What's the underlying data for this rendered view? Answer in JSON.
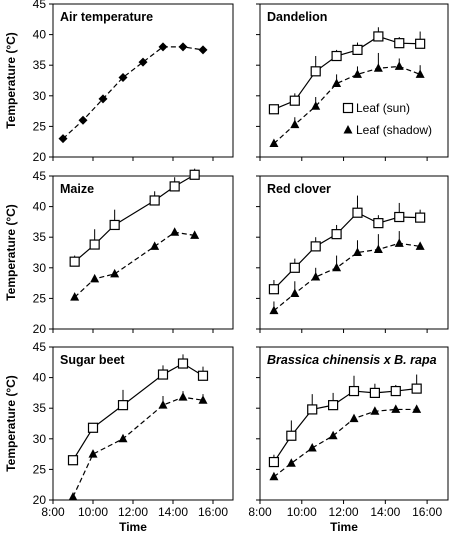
{
  "chart_data": {
    "type": "line",
    "x_tick_labels": [
      "8:00",
      "10:00",
      "12:00",
      "14:00",
      "16:00"
    ],
    "x_range_hours": [
      8,
      17
    ],
    "xlabel": "Time",
    "ylabel": "Temperature (°C)",
    "ylim": [
      20,
      45
    ],
    "y_ticks": [
      20,
      25,
      30,
      35,
      40,
      45
    ],
    "legend": {
      "panel": "Dandelion",
      "entries": [
        {
          "name": "Leaf (sun)",
          "marker": "square",
          "line": "solid"
        },
        {
          "name": "Leaf (shadow)",
          "marker": "triangle",
          "line": "dashed"
        }
      ]
    },
    "panels": [
      {
        "title": "Air temperature",
        "italic": false,
        "series": [
          {
            "marker": "diamond",
            "line": "dashed",
            "points": [
              {
                "time": "8:30",
                "value": 23.0
              },
              {
                "time": "9:30",
                "value": 26.0
              },
              {
                "time": "10:30",
                "value": 29.5
              },
              {
                "time": "11:30",
                "value": 33.0
              },
              {
                "time": "12:30",
                "value": 35.5
              },
              {
                "time": "13:30",
                "value": 38.0
              },
              {
                "time": "14:30",
                "value": 38.0
              },
              {
                "time": "15:30",
                "value": 37.5
              }
            ]
          }
        ]
      },
      {
        "title": "Dandelion",
        "italic": false,
        "series": [
          {
            "name": "Leaf (sun)",
            "marker": "square",
            "line": "solid",
            "points": [
              {
                "time": "8:40",
                "value": 27.8,
                "err": 0
              },
              {
                "time": "9:40",
                "value": 29.2,
                "err": 1.2
              },
              {
                "time": "10:40",
                "value": 34.0,
                "err": 2.5
              },
              {
                "time": "11:40",
                "value": 36.5,
                "err": 1.0
              },
              {
                "time": "12:40",
                "value": 37.5,
                "err": 1.2
              },
              {
                "time": "13:40",
                "value": 39.7,
                "err": 1.5
              },
              {
                "time": "14:40",
                "value": 38.6,
                "err": 1.0
              },
              {
                "time": "15:40",
                "value": 38.5,
                "err": 2.0
              }
            ]
          },
          {
            "name": "Leaf (shadow)",
            "marker": "triangle",
            "line": "dashed",
            "points": [
              {
                "time": "8:40",
                "value": 22.2,
                "err": 0
              },
              {
                "time": "9:40",
                "value": 25.3,
                "err": 1.2
              },
              {
                "time": "10:40",
                "value": 28.3,
                "err": 1.5
              },
              {
                "time": "11:40",
                "value": 32.0,
                "err": 1.5
              },
              {
                "time": "12:40",
                "value": 33.5,
                "err": 1.3
              },
              {
                "time": "13:40",
                "value": 34.5,
                "err": 2.5
              },
              {
                "time": "14:40",
                "value": 34.8,
                "err": 1.3
              },
              {
                "time": "15:40",
                "value": 33.5,
                "err": 1.5
              }
            ]
          }
        ]
      },
      {
        "title": "Maize",
        "italic": false,
        "series": [
          {
            "name": "Leaf (sun)",
            "marker": "square",
            "line": "solid",
            "points": [
              {
                "time": "9:05",
                "value": 31.0,
                "err": 1.0
              },
              {
                "time": "10:05",
                "value": 33.8,
                "err": 2.5
              },
              {
                "time": "11:05",
                "value": 37.0,
                "err": 2.5
              },
              {
                "time": "13:05",
                "value": 41.0,
                "err": 1.5
              },
              {
                "time": "14:05",
                "value": 43.3,
                "err": 1.5
              },
              {
                "time": "15:05",
                "value": 45.2,
                "err": 1.0
              }
            ]
          },
          {
            "name": "Leaf (shadow)",
            "marker": "triangle",
            "line": "dashed",
            "points": [
              {
                "time": "9:05",
                "value": 25.2,
                "err": 0
              },
              {
                "time": "10:05",
                "value": 28.2,
                "err": 0
              },
              {
                "time": "11:05",
                "value": 29.0,
                "err": 0
              },
              {
                "time": "13:05",
                "value": 33.5,
                "err": 0
              },
              {
                "time": "14:05",
                "value": 35.8,
                "err": 0
              },
              {
                "time": "15:05",
                "value": 35.3,
                "err": 0
              }
            ]
          }
        ]
      },
      {
        "title": "Red clover",
        "italic": false,
        "series": [
          {
            "name": "Leaf (sun)",
            "marker": "square",
            "line": "solid",
            "points": [
              {
                "time": "8:40",
                "value": 26.5,
                "err": 1.5
              },
              {
                "time": "9:40",
                "value": 30.0,
                "err": 1.5
              },
              {
                "time": "10:40",
                "value": 33.5,
                "err": 1.5
              },
              {
                "time": "11:40",
                "value": 35.5,
                "err": 1.5
              },
              {
                "time": "12:40",
                "value": 39.0,
                "err": 2.8
              },
              {
                "time": "13:40",
                "value": 37.3,
                "err": 1.3
              },
              {
                "time": "14:40",
                "value": 38.3,
                "err": 2.3
              },
              {
                "time": "15:40",
                "value": 38.2,
                "err": 1.3
              }
            ]
          },
          {
            "name": "Leaf (shadow)",
            "marker": "triangle",
            "line": "dashed",
            "points": [
              {
                "time": "8:40",
                "value": 23.0,
                "err": 1.5
              },
              {
                "time": "9:40",
                "value": 25.8,
                "err": 2.0
              },
              {
                "time": "10:40",
                "value": 28.5,
                "err": 1.5
              },
              {
                "time": "11:40",
                "value": 30.0,
                "err": 2.0
              },
              {
                "time": "12:40",
                "value": 32.5,
                "err": 2.0
              },
              {
                "time": "13:40",
                "value": 33.0,
                "err": 2.5
              },
              {
                "time": "14:40",
                "value": 34.0,
                "err": 2.0
              },
              {
                "time": "15:40",
                "value": 33.5,
                "err": 0
              }
            ]
          }
        ]
      },
      {
        "title": "Sugar beet",
        "italic": false,
        "series": [
          {
            "name": "Leaf (sun)",
            "marker": "square",
            "line": "solid",
            "points": [
              {
                "time": "9:00",
                "value": 26.5,
                "err": 0
              },
              {
                "time": "10:00",
                "value": 31.8,
                "err": 0
              },
              {
                "time": "11:30",
                "value": 35.5,
                "err": 2.5
              },
              {
                "time": "13:30",
                "value": 40.5,
                "err": 1.5
              },
              {
                "time": "14:30",
                "value": 42.3,
                "err": 1.5
              },
              {
                "time": "15:30",
                "value": 40.3,
                "err": 1.5
              }
            ]
          },
          {
            "name": "Leaf (shadow)",
            "marker": "triangle",
            "line": "dashed",
            "points": [
              {
                "time": "9:00",
                "value": 20.5,
                "err": 0
              },
              {
                "time": "10:00",
                "value": 27.5,
                "err": 0
              },
              {
                "time": "11:30",
                "value": 30.0,
                "err": 0
              },
              {
                "time": "13:30",
                "value": 35.5,
                "err": 1.5
              },
              {
                "time": "14:30",
                "value": 36.8,
                "err": 1.0
              },
              {
                "time": "15:30",
                "value": 36.3,
                "err": 1.0
              }
            ]
          }
        ]
      },
      {
        "title": "Brassica chinensis x B. rapa",
        "italic": true,
        "series": [
          {
            "name": "Leaf (sun)",
            "marker": "square",
            "line": "solid",
            "points": [
              {
                "time": "8:40",
                "value": 26.2,
                "err": 1.2
              },
              {
                "time": "9:30",
                "value": 30.5,
                "err": 2.5
              },
              {
                "time": "10:30",
                "value": 34.8,
                "err": 2.5
              },
              {
                "time": "11:30",
                "value": 35.5,
                "err": 2.0
              },
              {
                "time": "12:30",
                "value": 37.8,
                "err": 2.5
              },
              {
                "time": "13:30",
                "value": 37.5,
                "err": 1.5
              },
              {
                "time": "14:30",
                "value": 37.8,
                "err": 1.0
              },
              {
                "time": "15:30",
                "value": 38.2,
                "err": 2.3
              }
            ]
          },
          {
            "name": "Leaf (shadow)",
            "marker": "triangle",
            "line": "dashed",
            "points": [
              {
                "time": "8:40",
                "value": 23.8,
                "err": 0
              },
              {
                "time": "9:30",
                "value": 26.0,
                "err": 0
              },
              {
                "time": "10:30",
                "value": 28.5,
                "err": 0
              },
              {
                "time": "11:30",
                "value": 30.5,
                "err": 0
              },
              {
                "time": "12:30",
                "value": 33.3,
                "err": 0
              },
              {
                "time": "13:30",
                "value": 34.5,
                "err": 0
              },
              {
                "time": "14:30",
                "value": 34.8,
                "err": 0
              },
              {
                "time": "15:30",
                "value": 34.8,
                "err": 0
              }
            ]
          }
        ]
      }
    ]
  }
}
